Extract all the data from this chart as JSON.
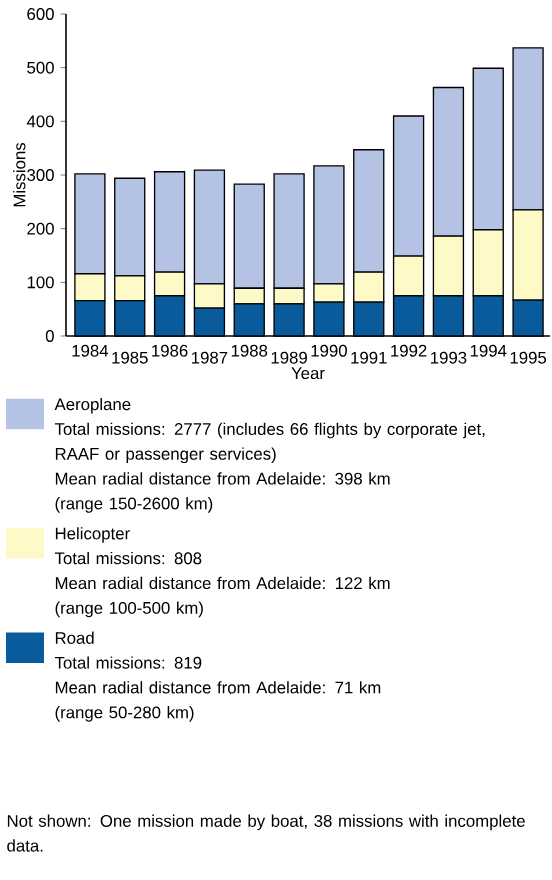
{
  "chart_data": {
    "type": "bar",
    "stacked": true,
    "xlabel": "Year",
    "ylabel": "Missions",
    "categories": [
      "1984",
      "1985",
      "1986",
      "1987",
      "1988",
      "1989",
      "1990",
      "1991",
      "1992",
      "1993",
      "1994",
      "1995"
    ],
    "series": [
      {
        "name": "Road",
        "color": "#0a5b9c",
        "values": [
          66,
          66,
          75,
          52,
          60,
          60,
          63,
          63,
          75,
          75,
          75,
          67
        ]
      },
      {
        "name": "Helicopter",
        "color": "#fdfac8",
        "values": [
          50,
          46,
          44,
          45,
          29,
          29,
          34,
          56,
          74,
          111,
          123,
          168
        ]
      },
      {
        "name": "Aeroplane",
        "color": "#b4c3e4",
        "values": [
          186,
          182,
          187,
          212,
          194,
          213,
          220,
          228,
          261,
          277,
          301,
          302
        ]
      }
    ],
    "ylim": [
      0,
      600
    ],
    "yticks": [
      0,
      100,
      200,
      300,
      400,
      500,
      600
    ],
    "legend": "bottom",
    "annotations": [
      "Total missions: 2777 (includes 66 flights by corporate jet, RAAF or passenger services)",
      "Mean radial distance from Adelaide: 398 km",
      "(range 150-2600 km)",
      "Total missions: 808",
      "Mean radial distance from Adelaide: 122 km",
      "(range 100-500 km)",
      "Total missions: 819",
      "Mean radial distance from Adelaide: 71 km",
      "(range 50-280 km)",
      "Not shown: One mission made by boat, 38 missions with incomplete data."
    ]
  }
}
